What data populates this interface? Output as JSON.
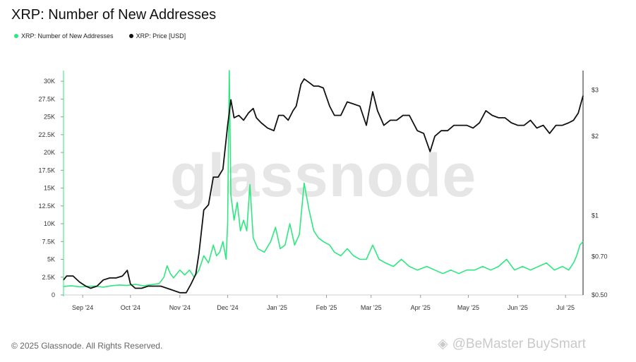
{
  "title": "XRP: Number of New Addresses",
  "footer": "© 2025 Glassnode. All Rights Reserved.",
  "watermark": "glassnode",
  "social_watermark": "@BeMaster BuySmart",
  "colors": {
    "addresses": "#2ee87f",
    "price": "#111111",
    "axis": "#333333"
  },
  "chart_data": {
    "type": "line",
    "title": "XRP: Number of New Addresses",
    "xlabel": "",
    "ylabel": "",
    "x_ticks": [
      "Sep '24",
      "Oct '24",
      "Nov '24",
      "Dec '24",
      "Jan '25",
      "Feb '25",
      "Mar '25",
      "Apr '25",
      "May '25",
      "Jun '25",
      "Jul '25"
    ],
    "x_range": [
      "2024-08-20",
      "2025-07-12"
    ],
    "y_left": {
      "ticks": [
        "0",
        "2.5K",
        "5K",
        "7.5K",
        "10K",
        "12.5K",
        "15K",
        "17.5K",
        "20K",
        "22.5K",
        "25K",
        "27.5K",
        "30K"
      ],
      "ylim": [
        0,
        31500
      ]
    },
    "y_right": {
      "scale": "log",
      "ticks": [
        "$0.50",
        "$0.70",
        "$1",
        "$2",
        "$3"
      ],
      "ylim": [
        0.5,
        3.55
      ]
    },
    "legend": {
      "placement": "top-left"
    },
    "series": [
      {
        "name": "XRP: Number of New Addresses",
        "axis": "left",
        "color": "#2ee87f",
        "points": [
          [
            "2024-08-20",
            1200
          ],
          [
            "2024-08-25",
            1300
          ],
          [
            "2024-08-30",
            1150
          ],
          [
            "2024-09-04",
            1200
          ],
          [
            "2024-09-09",
            1250
          ],
          [
            "2024-09-14",
            1100
          ],
          [
            "2024-09-19",
            1300
          ],
          [
            "2024-09-24",
            1400
          ],
          [
            "2024-09-29",
            1350
          ],
          [
            "2024-10-04",
            1500
          ],
          [
            "2024-10-09",
            1300
          ],
          [
            "2024-10-14",
            1450
          ],
          [
            "2024-10-19",
            1600
          ],
          [
            "2024-10-22",
            2500
          ],
          [
            "2024-10-24",
            4100
          ],
          [
            "2024-10-26",
            3000
          ],
          [
            "2024-10-28",
            2400
          ],
          [
            "2024-11-01",
            3500
          ],
          [
            "2024-11-04",
            2800
          ],
          [
            "2024-11-07",
            3500
          ],
          [
            "2024-11-10",
            2500
          ],
          [
            "2024-11-13",
            3500
          ],
          [
            "2024-11-16",
            5500
          ],
          [
            "2024-11-19",
            4500
          ],
          [
            "2024-11-22",
            7000
          ],
          [
            "2024-11-24",
            5500
          ],
          [
            "2024-11-26",
            6000
          ],
          [
            "2024-11-28",
            7500
          ],
          [
            "2024-11-30",
            5000
          ],
          [
            "2024-12-01",
            10000
          ],
          [
            "2024-12-02",
            31500
          ],
          [
            "2024-12-03",
            14000
          ],
          [
            "2024-12-05",
            10500
          ],
          [
            "2024-12-07",
            13000
          ],
          [
            "2024-12-09",
            9000
          ],
          [
            "2024-12-11",
            10500
          ],
          [
            "2024-12-13",
            9000
          ],
          [
            "2024-12-15",
            15500
          ],
          [
            "2024-12-17",
            8000
          ],
          [
            "2024-12-20",
            6500
          ],
          [
            "2024-12-24",
            6000
          ],
          [
            "2024-12-28",
            7500
          ],
          [
            "2024-12-31",
            9500
          ],
          [
            "2025-01-03",
            6500
          ],
          [
            "2025-01-06",
            7000
          ],
          [
            "2025-01-09",
            10000
          ],
          [
            "2025-01-12",
            7000
          ],
          [
            "2025-01-15",
            8500
          ],
          [
            "2025-01-18",
            15700
          ],
          [
            "2025-01-21",
            12000
          ],
          [
            "2025-01-24",
            9000
          ],
          [
            "2025-01-27",
            8000
          ],
          [
            "2025-01-30",
            7500
          ],
          [
            "2025-02-03",
            7000
          ],
          [
            "2025-02-06",
            6000
          ],
          [
            "2025-02-10",
            5500
          ],
          [
            "2025-02-14",
            6500
          ],
          [
            "2025-02-18",
            5500
          ],
          [
            "2025-02-22",
            5000
          ],
          [
            "2025-02-26",
            5000
          ],
          [
            "2025-03-02",
            7000
          ],
          [
            "2025-03-06",
            5000
          ],
          [
            "2025-03-10",
            4500
          ],
          [
            "2025-03-15",
            4000
          ],
          [
            "2025-03-20",
            5000
          ],
          [
            "2025-03-25",
            4000
          ],
          [
            "2025-03-30",
            3500
          ],
          [
            "2025-04-05",
            4000
          ],
          [
            "2025-04-10",
            3500
          ],
          [
            "2025-04-15",
            3000
          ],
          [
            "2025-04-20",
            3500
          ],
          [
            "2025-04-25",
            3000
          ],
          [
            "2025-04-30",
            3500
          ],
          [
            "2025-05-05",
            3500
          ],
          [
            "2025-05-10",
            4000
          ],
          [
            "2025-05-15",
            3500
          ],
          [
            "2025-05-20",
            4000
          ],
          [
            "2025-05-25",
            5000
          ],
          [
            "2025-05-30",
            3500
          ],
          [
            "2025-06-04",
            4000
          ],
          [
            "2025-06-09",
            3500
          ],
          [
            "2025-06-14",
            4000
          ],
          [
            "2025-06-19",
            4500
          ],
          [
            "2025-06-24",
            3500
          ],
          [
            "2025-06-29",
            4000
          ],
          [
            "2025-07-03",
            3500
          ],
          [
            "2025-07-06",
            4500
          ],
          [
            "2025-07-08",
            5500
          ],
          [
            "2025-07-10",
            7000
          ],
          [
            "2025-07-12",
            7500
          ]
        ]
      },
      {
        "name": "XRP: Price [USD]",
        "axis": "right",
        "color": "#111111",
        "points": [
          [
            "2024-08-20",
            0.57
          ],
          [
            "2024-08-22",
            0.59
          ],
          [
            "2024-08-26",
            0.59
          ],
          [
            "2024-08-30",
            0.56
          ],
          [
            "2024-09-03",
            0.54
          ],
          [
            "2024-09-06",
            0.53
          ],
          [
            "2024-09-10",
            0.54
          ],
          [
            "2024-09-14",
            0.57
          ],
          [
            "2024-09-18",
            0.58
          ],
          [
            "2024-09-22",
            0.58
          ],
          [
            "2024-09-26",
            0.59
          ],
          [
            "2024-09-29",
            0.62
          ],
          [
            "2024-10-01",
            0.55
          ],
          [
            "2024-10-04",
            0.53
          ],
          [
            "2024-10-08",
            0.53
          ],
          [
            "2024-10-12",
            0.54
          ],
          [
            "2024-10-16",
            0.54
          ],
          [
            "2024-10-20",
            0.54
          ],
          [
            "2024-10-24",
            0.53
          ],
          [
            "2024-10-28",
            0.52
          ],
          [
            "2024-11-01",
            0.51
          ],
          [
            "2024-11-05",
            0.51
          ],
          [
            "2024-11-08",
            0.55
          ],
          [
            "2024-11-11",
            0.6
          ],
          [
            "2024-11-13",
            0.72
          ],
          [
            "2024-11-16",
            1.05
          ],
          [
            "2024-11-19",
            1.1
          ],
          [
            "2024-11-22",
            1.4
          ],
          [
            "2024-11-25",
            1.4
          ],
          [
            "2024-11-28",
            1.5
          ],
          [
            "2024-12-01",
            2.2
          ],
          [
            "2024-12-03",
            2.75
          ],
          [
            "2024-12-05",
            2.35
          ],
          [
            "2024-12-08",
            2.4
          ],
          [
            "2024-12-11",
            2.3
          ],
          [
            "2024-12-14",
            2.45
          ],
          [
            "2024-12-17",
            2.55
          ],
          [
            "2024-12-19",
            2.35
          ],
          [
            "2024-12-22",
            2.25
          ],
          [
            "2024-12-26",
            2.15
          ],
          [
            "2024-12-30",
            2.1
          ],
          [
            "2025-01-02",
            2.4
          ],
          [
            "2025-01-05",
            2.4
          ],
          [
            "2025-01-08",
            2.3
          ],
          [
            "2025-01-11",
            2.5
          ],
          [
            "2025-01-13",
            2.6
          ],
          [
            "2025-01-16",
            3.15
          ],
          [
            "2025-01-18",
            3.3
          ],
          [
            "2025-01-21",
            3.2
          ],
          [
            "2025-01-24",
            3.1
          ],
          [
            "2025-01-27",
            3.1
          ],
          [
            "2025-01-30",
            3.05
          ],
          [
            "2025-02-03",
            2.6
          ],
          [
            "2025-02-06",
            2.4
          ],
          [
            "2025-02-10",
            2.4
          ],
          [
            "2025-02-14",
            2.7
          ],
          [
            "2025-02-18",
            2.65
          ],
          [
            "2025-02-22",
            2.6
          ],
          [
            "2025-02-26",
            2.2
          ],
          [
            "2025-03-02",
            2.95
          ],
          [
            "2025-03-05",
            2.5
          ],
          [
            "2025-03-09",
            2.2
          ],
          [
            "2025-03-13",
            2.3
          ],
          [
            "2025-03-17",
            2.3
          ],
          [
            "2025-03-21",
            2.4
          ],
          [
            "2025-03-25",
            2.4
          ],
          [
            "2025-03-30",
            2.1
          ],
          [
            "2025-04-03",
            2.05
          ],
          [
            "2025-04-07",
            1.75
          ],
          [
            "2025-04-10",
            2.0
          ],
          [
            "2025-04-14",
            2.1
          ],
          [
            "2025-04-18",
            2.1
          ],
          [
            "2025-04-22",
            2.2
          ],
          [
            "2025-04-26",
            2.2
          ],
          [
            "2025-04-30",
            2.2
          ],
          [
            "2025-05-04",
            2.15
          ],
          [
            "2025-05-08",
            2.25
          ],
          [
            "2025-05-12",
            2.5
          ],
          [
            "2025-05-16",
            2.4
          ],
          [
            "2025-05-20",
            2.35
          ],
          [
            "2025-05-24",
            2.35
          ],
          [
            "2025-05-28",
            2.25
          ],
          [
            "2025-06-01",
            2.2
          ],
          [
            "2025-06-05",
            2.2
          ],
          [
            "2025-06-09",
            2.3
          ],
          [
            "2025-06-13",
            2.15
          ],
          [
            "2025-06-17",
            2.2
          ],
          [
            "2025-06-21",
            2.05
          ],
          [
            "2025-06-25",
            2.2
          ],
          [
            "2025-06-29",
            2.2
          ],
          [
            "2025-07-03",
            2.25
          ],
          [
            "2025-07-06",
            2.3
          ],
          [
            "2025-07-09",
            2.45
          ],
          [
            "2025-07-12",
            2.85
          ]
        ]
      }
    ]
  }
}
